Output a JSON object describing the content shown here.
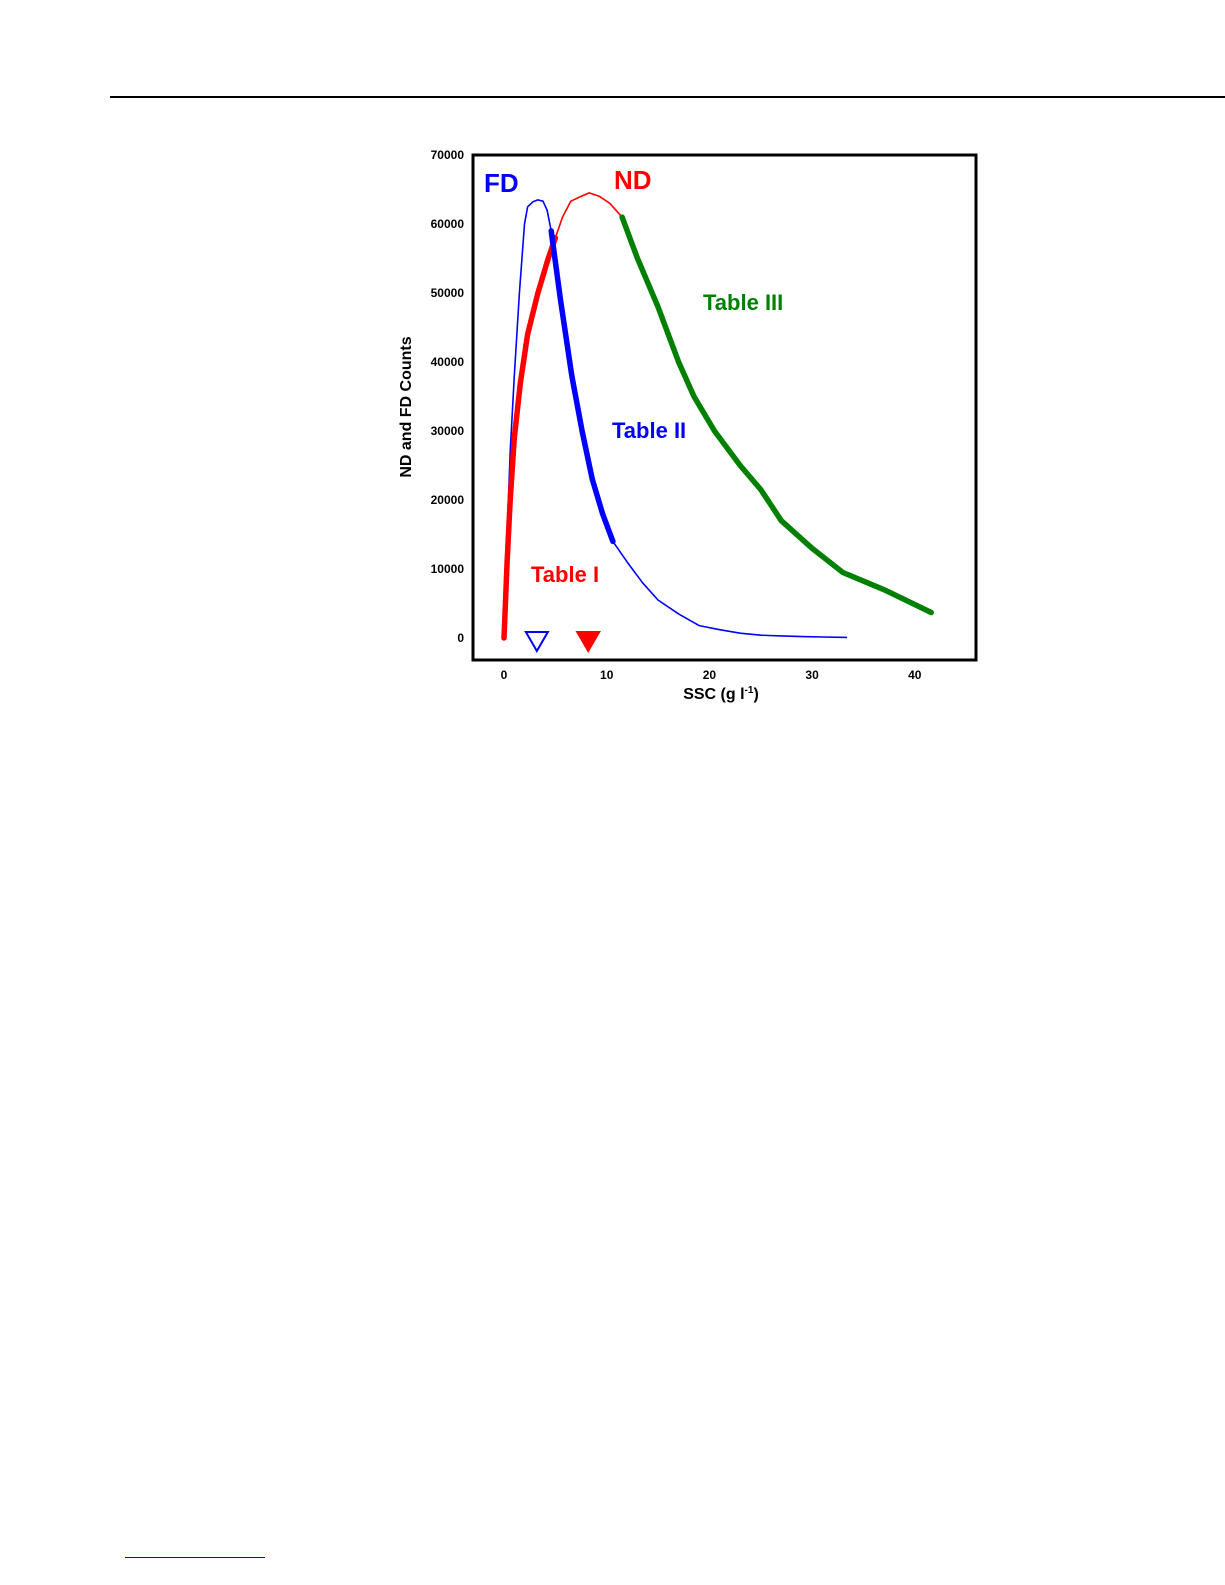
{
  "chart_data": {
    "type": "line",
    "title": "",
    "xlabel": "SSC (g l",
    "xlabel_sup": "-1",
    "xlabel_close": ")",
    "ylabel": "ND and FD Counts",
    "xlim": [
      -3,
      46
    ],
    "ylim": [
      -3000,
      70000
    ],
    "x_ticks": [
      0,
      10,
      20,
      30,
      40
    ],
    "y_ticks": [
      0,
      10000,
      20000,
      30000,
      40000,
      50000,
      60000,
      70000
    ],
    "grid": false,
    "series": [
      {
        "name": "FD",
        "color": "#0000ff",
        "points": [
          [
            0,
            0
          ],
          [
            0.3,
            15000
          ],
          [
            0.6,
            27000
          ],
          [
            1,
            38000
          ],
          [
            1.5,
            50000
          ],
          [
            2,
            60000
          ],
          [
            2.3,
            62500
          ],
          [
            2.8,
            63200
          ],
          [
            3.3,
            63500
          ],
          [
            3.8,
            63300
          ],
          [
            4.2,
            62000
          ],
          [
            4.6,
            59000
          ],
          [
            5.5,
            49000
          ],
          [
            6.6,
            38000
          ],
          [
            7.6,
            30000
          ],
          [
            8.6,
            23000
          ],
          [
            9.6,
            18000
          ],
          [
            10.6,
            14000
          ],
          [
            12,
            11000
          ],
          [
            13.5,
            8000
          ],
          [
            15,
            5500
          ],
          [
            17,
            3500
          ],
          [
            19,
            1800
          ],
          [
            21,
            1200
          ],
          [
            23,
            700
          ],
          [
            25,
            400
          ],
          [
            27,
            300
          ],
          [
            29,
            200
          ],
          [
            31,
            150
          ],
          [
            33.4,
            80
          ]
        ],
        "highlight": {
          "label": "Table II",
          "x_range": [
            4.6,
            11.3
          ]
        }
      },
      {
        "name": "ND",
        "color": "#ff0000",
        "points": [
          [
            0,
            0
          ],
          [
            0.3,
            11000
          ],
          [
            0.6,
            20000
          ],
          [
            1,
            29000
          ],
          [
            1.6,
            37000
          ],
          [
            2.3,
            44000
          ],
          [
            3.3,
            50000
          ],
          [
            4.3,
            55000
          ],
          [
            5,
            58000
          ],
          [
            5.7,
            61000
          ],
          [
            6.5,
            63300
          ],
          [
            7.5,
            64000
          ],
          [
            8.3,
            64500
          ],
          [
            9.3,
            64000
          ],
          [
            10.3,
            63000
          ],
          [
            11.5,
            61000
          ],
          [
            13,
            55000
          ],
          [
            15,
            48000
          ],
          [
            17,
            40000
          ],
          [
            18.5,
            35000
          ],
          [
            20.5,
            30000
          ],
          [
            23,
            25000
          ],
          [
            25,
            21500
          ],
          [
            27,
            17000
          ],
          [
            30,
            13000
          ],
          [
            33,
            9500
          ],
          [
            37,
            7000
          ],
          [
            41.6,
            3700
          ]
        ],
        "highlight": {
          "label": "Table I",
          "x_range": [
            0,
            5
          ]
        }
      }
    ],
    "highlights": [
      {
        "label": "Table I",
        "series": "ND",
        "x_range": [
          0,
          5
        ],
        "color": "#ff0000"
      },
      {
        "label": "Table II",
        "series": "FD",
        "x_range": [
          4.6,
          11.3
        ],
        "color": "#0000ff"
      },
      {
        "label": "Table III",
        "series": "ND",
        "x_range": [
          11.5,
          41.6
        ],
        "color": "#008000"
      }
    ],
    "markers": [
      {
        "x": 3.2,
        "y": 0,
        "shape": "triangle-down",
        "filled": false,
        "color": "#0000ff"
      },
      {
        "x": 8.2,
        "y": 0,
        "shape": "triangle-down",
        "filled": true,
        "color": "#ff0000"
      }
    ],
    "annotations": [
      {
        "text": "FD",
        "color": "#0000ff"
      },
      {
        "text": "ND",
        "color": "#ff0000"
      },
      {
        "text": "Table I",
        "color": "#ff0000"
      },
      {
        "text": "Table II",
        "color": "#0000ff"
      },
      {
        "text": "Table III",
        "color": "#008000"
      }
    ]
  }
}
